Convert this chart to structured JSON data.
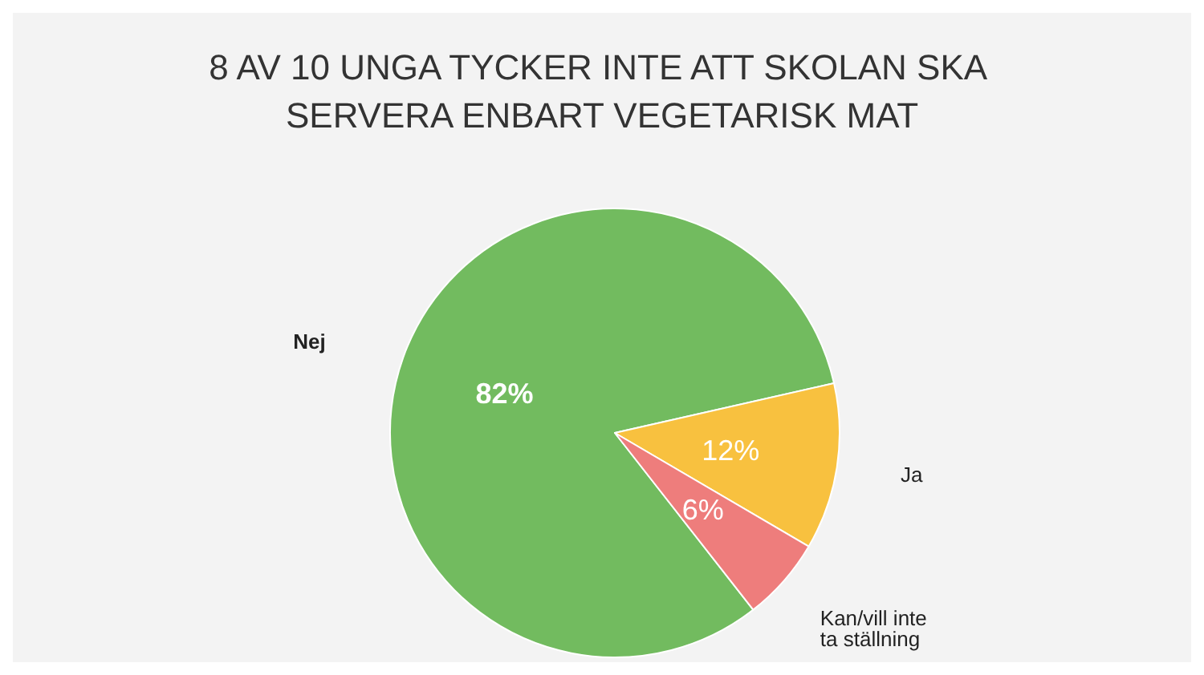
{
  "chart_data": {
    "type": "pie",
    "title": "8 AV 10 UNGA TYCKER INTE ATT SKOLAN SKA SERVERA ENBART VEGETARISK MAT",
    "categories": [
      "Nej",
      "Ja",
      "Kan/vill inte ta ställning"
    ],
    "values": [
      82,
      12,
      6
    ],
    "colors": [
      "#72bb5f",
      "#f8c13f",
      "#ee7d7c"
    ],
    "value_labels": [
      "82%",
      "12%",
      "6%"
    ],
    "legend": false
  }
}
